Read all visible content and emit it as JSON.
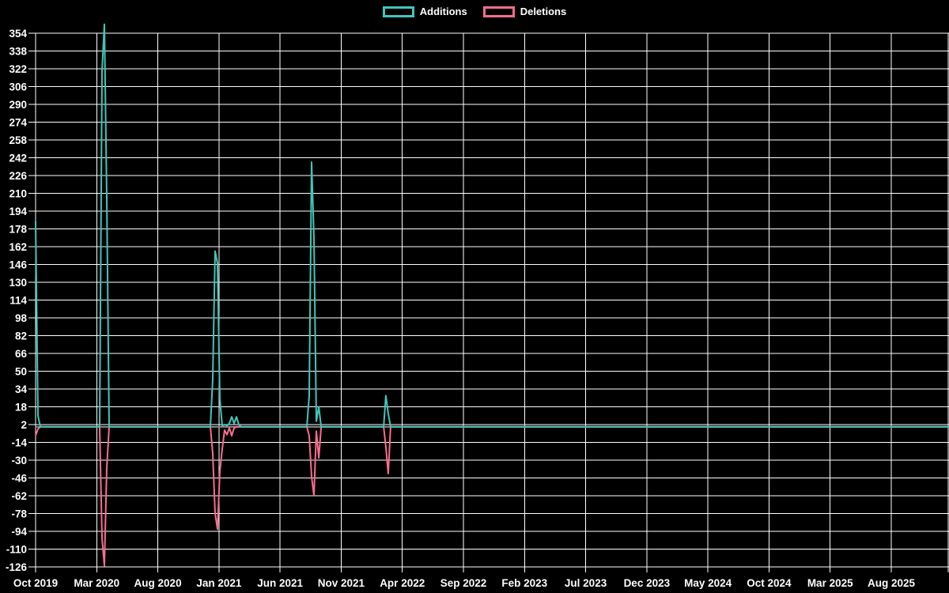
{
  "legend": {
    "additions_label": "Additions",
    "deletions_label": "Deletions"
  },
  "colors": {
    "additions": "#41c6ba",
    "deletions": "#f96d8f",
    "text": "#ffffff",
    "grid": "#ffffff",
    "zero_line": "#8a8a8a",
    "background": "#000000"
  },
  "chart_data": {
    "type": "line",
    "title": "",
    "legend": {
      "position": "top",
      "entries": [
        "Additions",
        "Deletions"
      ]
    },
    "background": "#000000",
    "grid": {
      "show": true,
      "color": "#ffffff"
    },
    "zero_line_color": "#8a8a8a",
    "x_axis": {
      "tick_labels": [
        "Oct 2019",
        "Mar 2020",
        "Aug 2020",
        "Jan 2021",
        "Jun 2021",
        "Nov 2021",
        "Apr 2022",
        "Sep 2022",
        "Feb 2023",
        "Jul 2023",
        "Dec 2023",
        "May 2024",
        "Oct 2024",
        "Mar 2025",
        "Aug 2025"
      ],
      "extra_unlabeled_gridline_at_right_edge": true
    },
    "y_axis": {
      "min": -126,
      "max": 354,
      "step": 16,
      "ticks": [
        354,
        338,
        322,
        306,
        290,
        274,
        258,
        242,
        226,
        210,
        194,
        178,
        162,
        146,
        130,
        114,
        98,
        82,
        66,
        50,
        34,
        18,
        2,
        -14,
        -30,
        -46,
        -62,
        -78,
        -94,
        -110,
        -126
      ]
    },
    "series": [
      {
        "name": "Additions",
        "color": "#41c6ba",
        "x_frac": [
          0,
          0.0026,
          0.0052,
          0.0701,
          0.0727,
          0.0753,
          0.0779,
          0.0805,
          0.1913,
          0.1939,
          0.1965,
          0.1991,
          0.2017,
          0.2043,
          0.2069,
          0.2095,
          0.2121,
          0.2147,
          0.2173,
          0.2199,
          0.2225,
          0.2251,
          0.297,
          0.2996,
          0.3022,
          0.3048,
          0.3074,
          0.31,
          0.3126,
          0.381,
          0.3835,
          0.3861,
          0.3887,
          1.0
        ],
        "values": [
          185,
          10,
          0,
          0,
          320,
          362,
          206,
          0,
          0,
          43,
          158,
          147,
          25,
          1,
          2,
          1,
          3,
          9,
          3,
          9,
          2,
          0,
          0,
          28,
          238,
          170,
          5,
          18,
          0,
          0,
          28,
          12,
          0,
          0
        ]
      },
      {
        "name": "Deletions",
        "color": "#f96d8f",
        "x_frac": [
          0,
          0.0026,
          0.0052,
          0.0701,
          0.0727,
          0.0753,
          0.0779,
          0.0805,
          0.1913,
          0.1939,
          0.1965,
          0.1991,
          0.2017,
          0.2043,
          0.2069,
          0.2095,
          0.2121,
          0.2147,
          0.2173,
          0.2199,
          0.2225,
          0.2251,
          0.297,
          0.2996,
          0.3022,
          0.3048,
          0.3074,
          0.31,
          0.3126,
          0.381,
          0.3835,
          0.3861,
          0.3887,
          1.0
        ],
        "values": [
          -8,
          -2,
          0,
          0,
          -100,
          -125,
          -37,
          0,
          0,
          -24,
          -78,
          -92,
          -40,
          -20,
          -3,
          -7,
          -1,
          -8,
          -1,
          0,
          0,
          0,
          0,
          -8,
          -45,
          -62,
          -4,
          -28,
          0,
          0,
          -18,
          -42,
          0,
          0
        ]
      }
    ],
    "clusters": [
      {
        "approx_date": "2019-10",
        "additions_peak": 185,
        "deletions_peak": -8
      },
      {
        "approx_date": "2020-03",
        "additions_peak": 362,
        "deletions_peak": -125
      },
      {
        "approx_date": "2021-01",
        "additions_peak": 158,
        "deletions_peak": -92
      },
      {
        "approx_date": "2021-09",
        "additions_peak": 238,
        "deletions_peak": -62
      },
      {
        "approx_date": "2022-03",
        "additions_peak": 28,
        "deletions_peak": -42
      }
    ]
  }
}
